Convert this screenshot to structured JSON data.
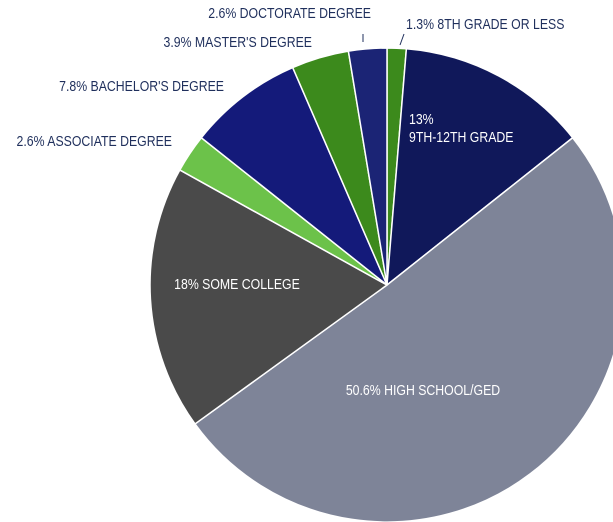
{
  "chart_data": {
    "type": "pie",
    "title": "",
    "slices": [
      {
        "label": "8TH GRADE OR LESS",
        "value": 1.3,
        "value_text": "1.3%",
        "color": "#3c8a1c",
        "label_placement": "outside"
      },
      {
        "label": "9TH-12TH GRADE",
        "value": 13,
        "value_text": "13%",
        "color": "#10185a",
        "label_placement": "inside-two-line"
      },
      {
        "label": "HIGH SCHOOL/GED",
        "value": 50.6,
        "value_text": "50.6%",
        "color": "#7e8498",
        "label_placement": "inside"
      },
      {
        "label": "SOME COLLEGE",
        "value": 18,
        "value_text": "18%",
        "color": "#4a4a4a",
        "label_placement": "inside"
      },
      {
        "label": "ASSOCIATE DEGREE",
        "value": 2.6,
        "value_text": "2.6%",
        "color": "#6cc24a",
        "label_placement": "outside"
      },
      {
        "label": "BACHELOR'S DEGREE",
        "value": 7.8,
        "value_text": "7.8%",
        "color": "#141a7a",
        "label_placement": "outside"
      },
      {
        "label": "MASTER'S DEGREE",
        "value": 3.9,
        "value_text": "3.9%",
        "color": "#3c8a1c",
        "label_placement": "outside"
      },
      {
        "label": "DOCTORATE DEGREE",
        "value": 2.6,
        "value_text": "2.6%",
        "color": "#1b2475",
        "label_placement": "outside"
      }
    ],
    "start_angle": "12 o'clock",
    "direction": "clockwise",
    "slice_border_color": "#ffffff",
    "label_text_color": "#1f2f5c",
    "inside_label_color": "#ffffff"
  }
}
